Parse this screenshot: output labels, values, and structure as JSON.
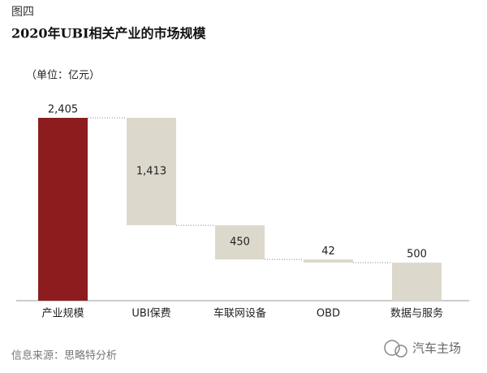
{
  "chart_data": {
    "type": "waterfall",
    "title": "图四",
    "subtitle": "2020年UBI相关产业的市场规模",
    "unit": "（单位：亿元）",
    "categories": [
      "产业规模",
      "UBI保费",
      "车联网设备",
      "OBD",
      "数据与服务"
    ],
    "values": [
      2405,
      1413,
      450,
      42,
      500
    ],
    "value_labels": [
      "2,405",
      "1,413",
      "450",
      "42",
      "500"
    ],
    "colors": [
      "#8c1c1e",
      "#dcd8cb",
      "#dcd8cb",
      "#dcd8cb",
      "#dcd8cb"
    ],
    "source": "信息来源：思略特分析",
    "watermark": "汽车主场"
  }
}
